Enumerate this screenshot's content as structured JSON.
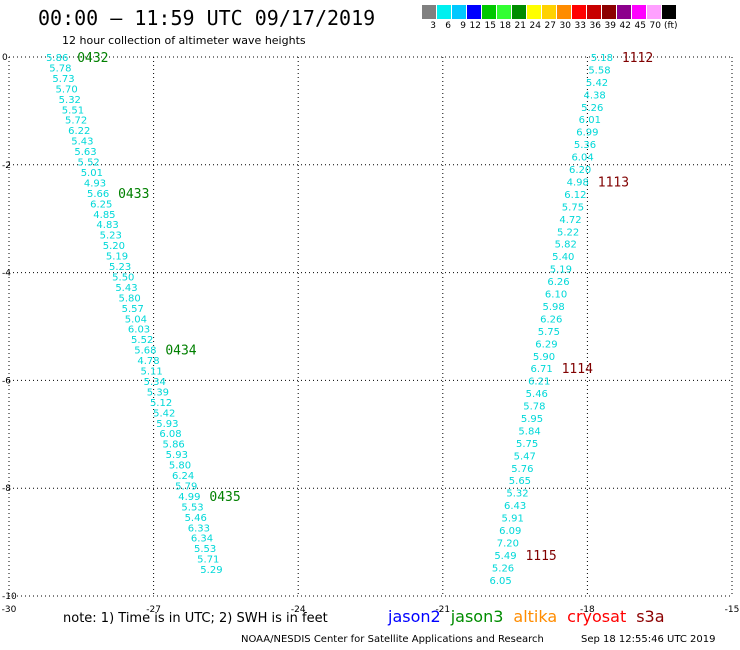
{
  "header": {
    "title": "00:00 – 11:59 UTC 09/17/2019",
    "subtitle": "12 hour collection of altimeter wave heights"
  },
  "legend": {
    "colors": [
      "#808080",
      "#00f0f0",
      "#00c8ff",
      "#0000ff",
      "#00c800",
      "#32ff32",
      "#008c00",
      "#ffff00",
      "#ffd200",
      "#ff8c00",
      "#ff0000",
      "#c80000",
      "#8c0000",
      "#8c008c",
      "#ff00ff",
      "#ffa0ff",
      "#000000"
    ],
    "labels": [
      "3",
      "6",
      "9",
      "12",
      "15",
      "18",
      "21",
      "24",
      "27",
      "30",
      "33",
      "36",
      "39",
      "42",
      "45",
      "70"
    ],
    "unit": "(ft)"
  },
  "footer": {
    "note": "note: 1) Time is in UTC; 2) SWH is in feet",
    "satellites": [
      {
        "name": "jason2",
        "color": "#0000ff"
      },
      {
        "name": "jason3",
        "color": "#008c00"
      },
      {
        "name": "altika",
        "color": "#ff8c00"
      },
      {
        "name": "cryosat",
        "color": "#ff0000"
      },
      {
        "name": "s3a",
        "color": "#8c0000"
      }
    ],
    "credit": "NOAA/NESDIS Center for Satellite Applications and Research",
    "timestamp": "Sep 18 12:55:46 UTC 2019"
  },
  "chart_data": {
    "type": "scatter",
    "xlim": [
      -30,
      -15
    ],
    "ylim": [
      -10,
      0
    ],
    "xticks": [
      -30,
      -27,
      -24,
      -21,
      -18,
      -15
    ],
    "yticks": [
      0,
      -2,
      -4,
      -6,
      -8,
      -10
    ],
    "grid": "dotted",
    "tracks": [
      {
        "name": "left",
        "start": [
          -29.0,
          0.0
        ],
        "end": [
          -25.8,
          -9.5
        ],
        "values": [
          "5.86",
          "5.78",
          "5.73",
          "5.70",
          "5.32",
          "5.51",
          "5.72",
          "6.22",
          "5.43",
          "5.63",
          "5.52",
          "5.01",
          "4.93",
          "5.66",
          "6.25",
          "4.85",
          "4.83",
          "5.23",
          "5.20",
          "5.19",
          "5.23",
          "5.50",
          "5.43",
          "5.80",
          "5.57",
          "5.04",
          "6.03",
          "5.52",
          "5.68",
          "4.78",
          "5.11",
          "5.34",
          "5.39",
          "5.12",
          "5.42",
          "5.93",
          "6.08",
          "5.86",
          "5.93",
          "5.80",
          "6.24",
          "5.79",
          "4.99",
          "5.53",
          "5.46",
          "6.33",
          "6.34",
          "5.53",
          "5.71",
          "5.29"
        ],
        "passes": [
          {
            "label": "0432",
            "index": 0,
            "color": "#008000"
          },
          {
            "label": "0433",
            "index": 13,
            "color": "#008000"
          },
          {
            "label": "0434",
            "index": 28,
            "color": "#008000"
          },
          {
            "label": "0435",
            "index": 42,
            "color": "#008000"
          }
        ]
      },
      {
        "name": "right",
        "start": [
          -17.7,
          0.0
        ],
        "end": [
          -19.8,
          -9.7
        ],
        "values": [
          "5.18",
          "5.58",
          "5.42",
          "4.38",
          "5.26",
          "6.01",
          "6.99",
          "5.36",
          "6.04",
          "6.20",
          "4.98",
          "6.12",
          "5.75",
          "4.72",
          "5.22",
          "5.82",
          "5.40",
          "5.19",
          "6.26",
          "6.10",
          "5.98",
          "6.26",
          "5.75",
          "6.29",
          "5.90",
          "6.71",
          "6.21",
          "5.46",
          "5.78",
          "5.95",
          "5.84",
          "5.75",
          "5.47",
          "5.76",
          "5.65",
          "5.32",
          "6.43",
          "5.91",
          "6.09",
          "7.20",
          "5.49",
          "5.26",
          "6.05"
        ],
        "passes": [
          {
            "label": "1112",
            "index": 0,
            "color": "#800000"
          },
          {
            "label": "1113",
            "index": 10,
            "color": "#800000"
          },
          {
            "label": "1114",
            "index": 25,
            "color": "#800000"
          },
          {
            "label": "1115",
            "index": 40,
            "color": "#800000"
          }
        ]
      }
    ]
  }
}
